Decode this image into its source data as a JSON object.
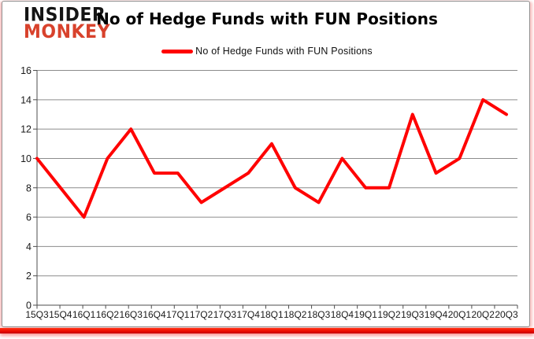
{
  "logo": {
    "line1": "INSIDER",
    "line2": "MONKEY",
    "line1_color": "#141414",
    "line2_color": "#d8422c"
  },
  "header": {
    "title": "No of Hedge Funds with FUN Positions"
  },
  "legend": {
    "label": "No of Hedge Funds with FUN Positions",
    "swatch_color": "#ff0000",
    "position": "top"
  },
  "chart_data": {
    "type": "line",
    "title": "No of Hedge Funds with FUN Positions",
    "categories": [
      "15Q3",
      "15Q4",
      "16Q1",
      "16Q2",
      "16Q3",
      "16Q4",
      "17Q1",
      "17Q2",
      "17Q3",
      "17Q4",
      "18Q1",
      "18Q2",
      "18Q3",
      "18Q4",
      "19Q1",
      "19Q2",
      "19Q3",
      "19Q4",
      "20Q1",
      "20Q2",
      "20Q3"
    ],
    "values": [
      10,
      8,
      6,
      10,
      12,
      9,
      9,
      7,
      8,
      9,
      11,
      8,
      7,
      10,
      8,
      8,
      13,
      9,
      10,
      14,
      13
    ],
    "xlabel": "",
    "ylabel": "",
    "ylim": [
      0,
      16
    ],
    "ytick_step": 2,
    "yticks": [
      0,
      2,
      4,
      6,
      8,
      10,
      12,
      14,
      16
    ],
    "grid": true,
    "legend_position": "top",
    "line_color": "#ff0000",
    "line_width": 4,
    "gridline_color": "#8c8c8c",
    "axis_color": "#4d4d4d",
    "tick_label_color": "#1a1a1a"
  },
  "decor": {
    "bottom_bar_color": "#ee0b00",
    "frame_border_color": "#8f8f8f"
  }
}
